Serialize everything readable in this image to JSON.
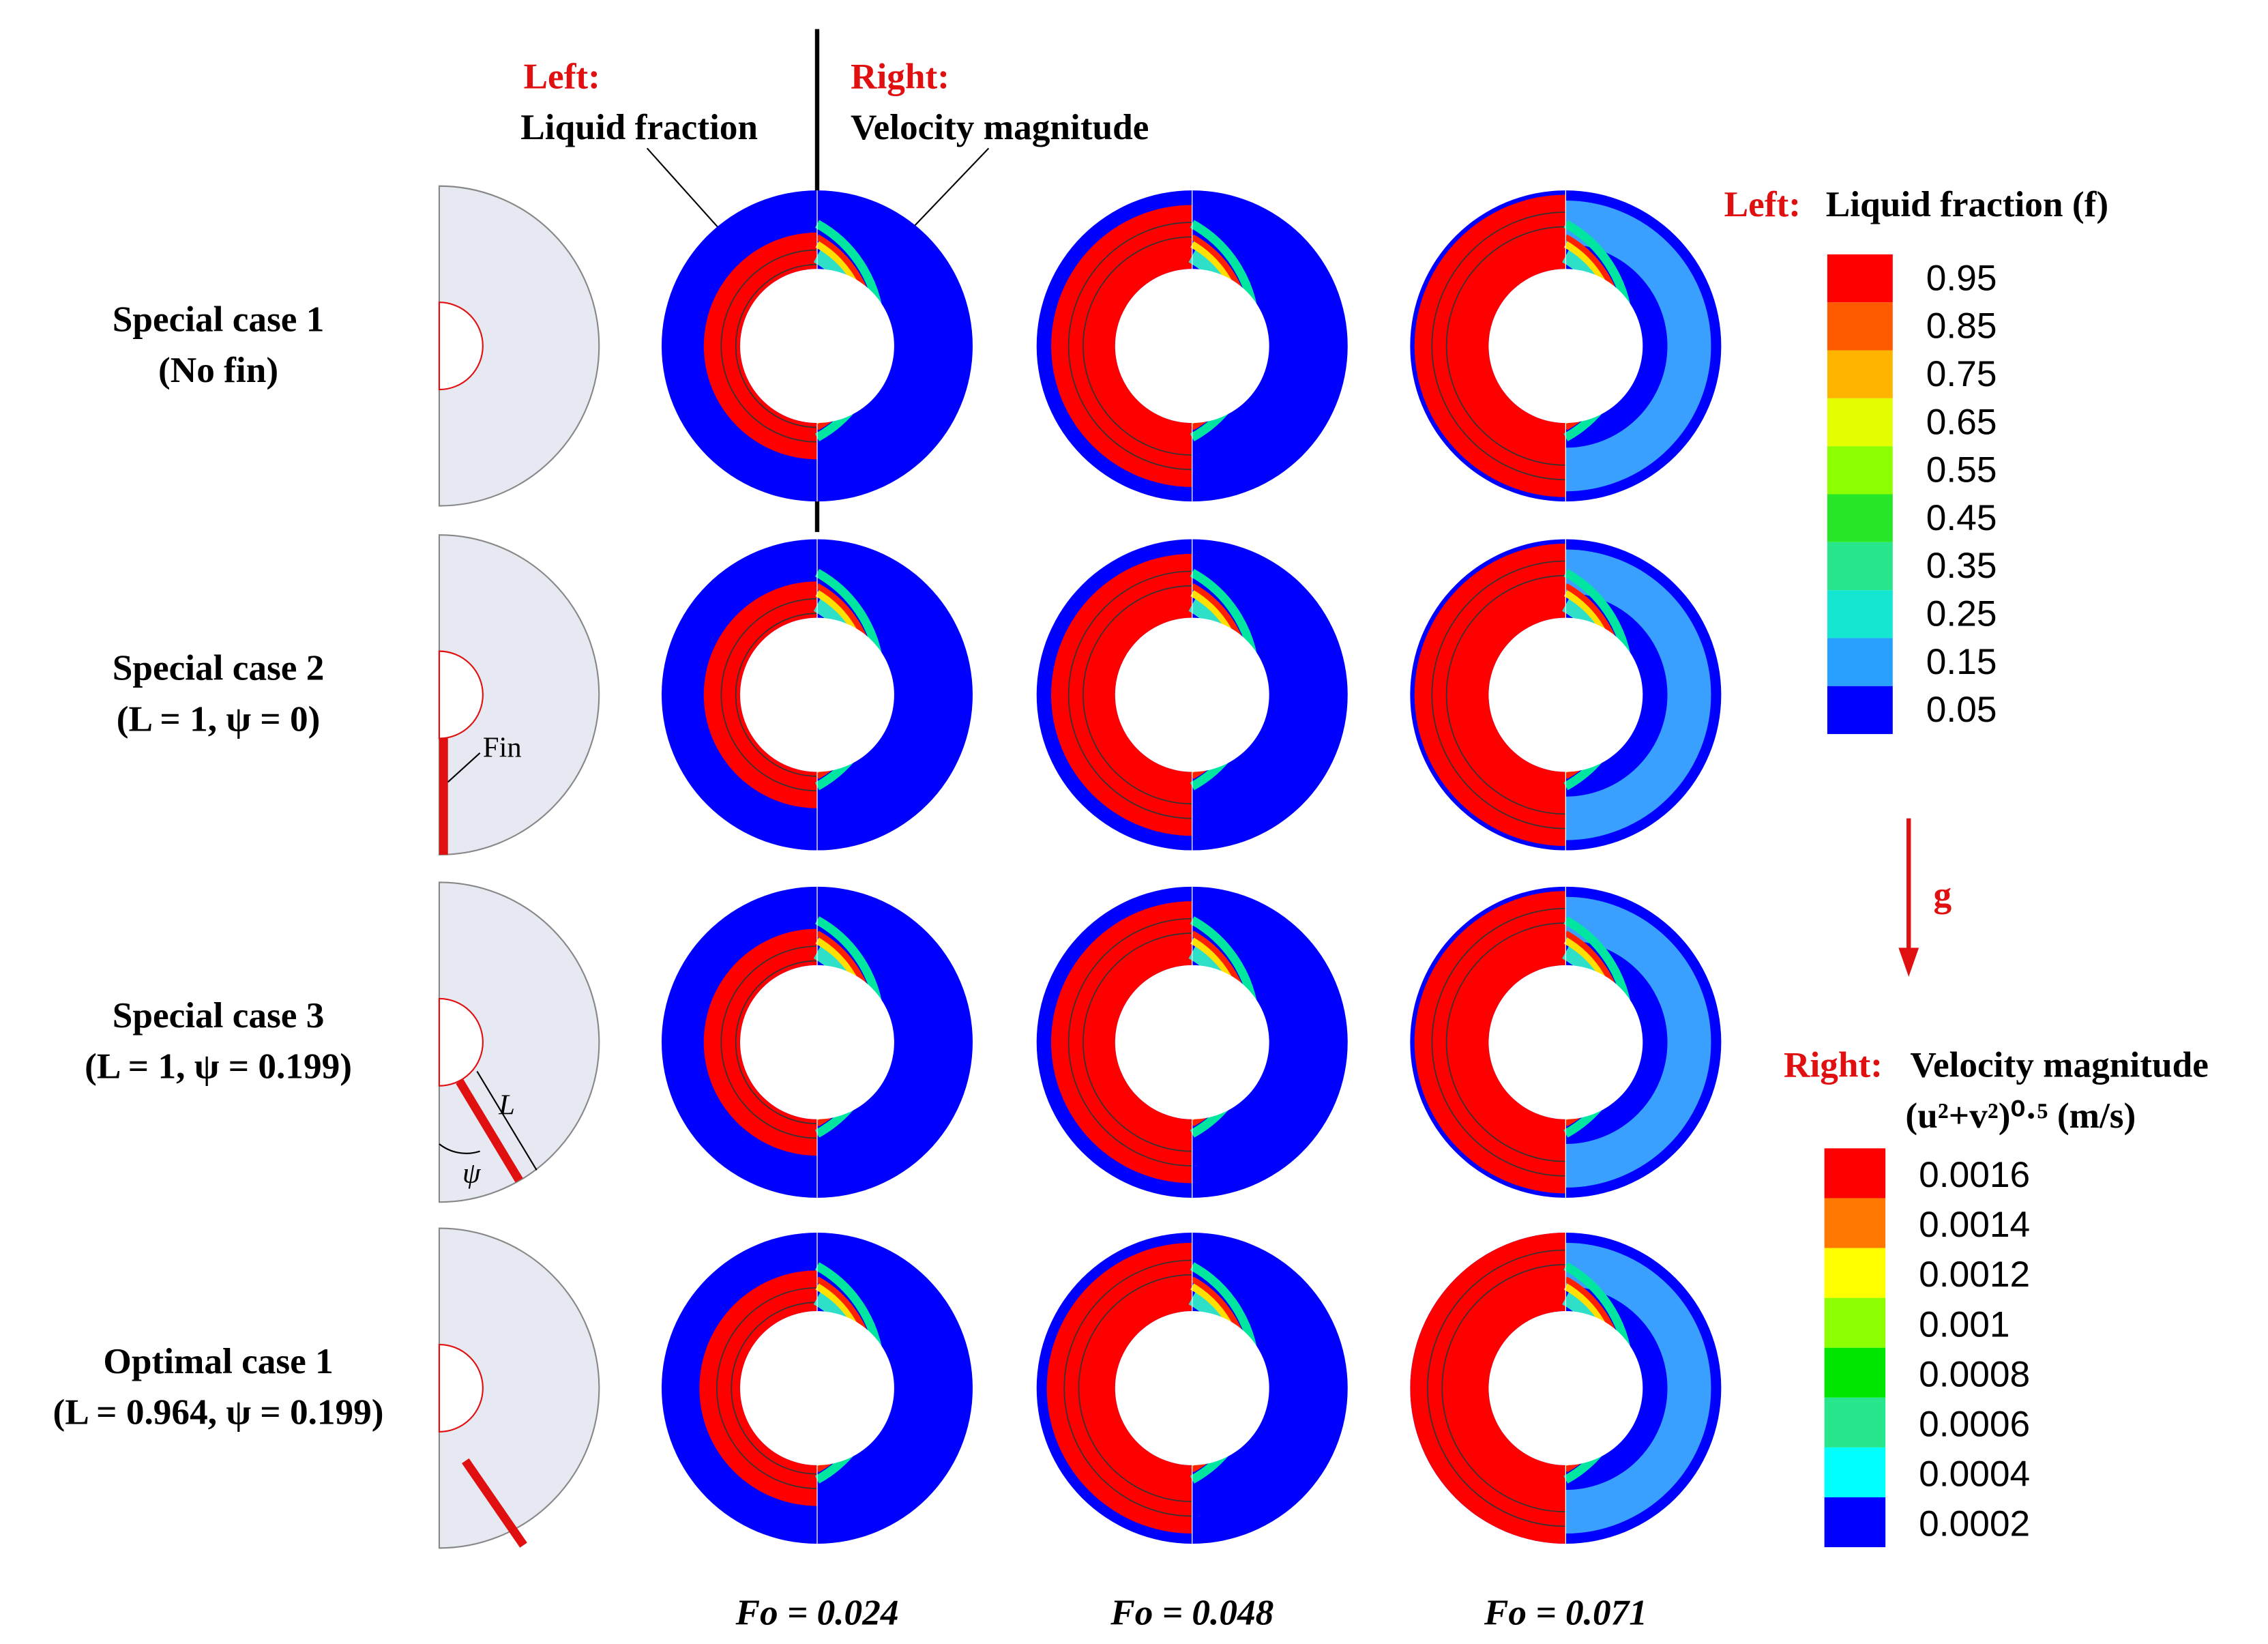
{
  "annotations": {
    "left_head": "Left:",
    "left_text": "Liquid fraction",
    "right_head": "Right:",
    "right_text": "Velocity magnitude",
    "fin": "Fin",
    "L": "L",
    "psi": "ψ",
    "g": "g"
  },
  "rows": [
    {
      "name": "Special case 1",
      "params": "(No fin)"
    },
    {
      "name": "Special case 2",
      "params": "(L = 1, ψ = 0)"
    },
    {
      "name": "Special case 3",
      "params": "(L = 1, ψ = 0.199)"
    },
    {
      "name": "Optimal case 1",
      "params": "(L = 0.964, ψ = 0.199)"
    }
  ],
  "columns": [
    "Fo = 0.024",
    "Fo = 0.048",
    "Fo = 0.071"
  ],
  "legends": {
    "liquid": {
      "head": "Left:",
      "title": "Liquid fraction (f)",
      "ticks": [
        "0.95",
        "0.85",
        "0.75",
        "0.65",
        "0.55",
        "0.45",
        "0.35",
        "0.25",
        "0.15",
        "0.05"
      ]
    },
    "velocity": {
      "head": "Right:",
      "title": "Velocity magnitude",
      "units": "(u²+v²)⁰·⁵ (m/s)",
      "ticks": [
        "0.0016",
        "0.0014",
        "0.0012",
        "0.001",
        "0.0008",
        "0.0006",
        "0.0004",
        "0.0002"
      ]
    }
  }
}
